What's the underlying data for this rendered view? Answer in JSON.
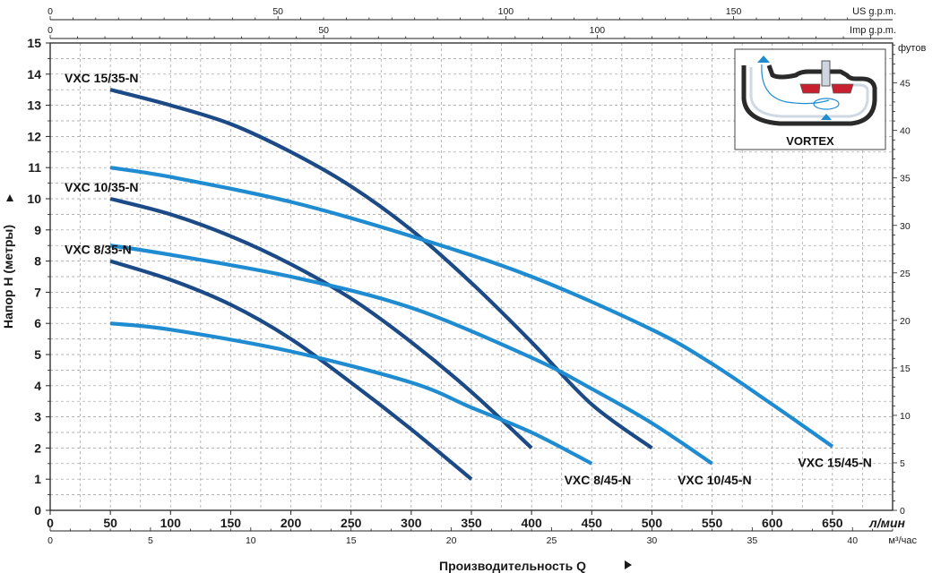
{
  "chart_data": {
    "type": "line",
    "xlabel": "Производительность  Q",
    "ylabel": "Напор  H (метры)",
    "x_unit": "л/мин",
    "y2_unit": "футов",
    "xlim": [
      0,
      700
    ],
    "ylim": [
      0,
      15
    ],
    "x_ticks": [
      0,
      50,
      100,
      150,
      200,
      250,
      300,
      350,
      400,
      450,
      500,
      550,
      600,
      650
    ],
    "y_ticks": [
      0,
      1,
      2,
      3,
      4,
      5,
      6,
      7,
      8,
      9,
      10,
      11,
      12,
      13,
      14,
      15
    ],
    "top_axes": [
      {
        "unit": "US g.p.m.",
        "max": 184.9,
        "ticks": [
          0,
          50,
          100,
          150
        ]
      },
      {
        "unit": "Imp g.p.m.",
        "max": 154.0,
        "ticks": [
          0,
          50,
          100
        ]
      }
    ],
    "bottom_axis2": {
      "unit": "м³/час",
      "max": 42,
      "ticks": [
        0,
        5,
        10,
        15,
        20,
        25,
        30,
        35,
        40
      ]
    },
    "right_axis": {
      "unit": "футов",
      "max": 49.21,
      "ticks": [
        0,
        5,
        10,
        15,
        20,
        25,
        30,
        35,
        40,
        45
      ]
    },
    "grid": true,
    "series": [
      {
        "name": "VXC 15/35-N",
        "color": "#1b4a86",
        "label_pos": "start",
        "x": [
          50,
          100,
          150,
          200,
          250,
          300,
          350,
          400,
          450,
          500
        ],
        "y": [
          13.5,
          13.0,
          12.4,
          11.5,
          10.4,
          9.0,
          7.3,
          5.4,
          3.4,
          2.0
        ]
      },
      {
        "name": "VXC 10/35-N",
        "color": "#1b4a86",
        "label_pos": "start",
        "x": [
          50,
          100,
          150,
          200,
          250,
          300,
          350,
          400
        ],
        "y": [
          10.0,
          9.5,
          8.8,
          7.9,
          6.8,
          5.4,
          3.8,
          2.0
        ]
      },
      {
        "name": "VXC  8/35-N",
        "color": "#1b4a86",
        "label_pos": "start",
        "x": [
          50,
          100,
          150,
          200,
          250,
          300,
          350
        ],
        "y": [
          8.0,
          7.4,
          6.6,
          5.5,
          4.1,
          2.6,
          1.0
        ]
      },
      {
        "name": "VXC 15/45-N",
        "color": "#1f8bd1",
        "label_pos": "end",
        "x": [
          50,
          100,
          200,
          300,
          400,
          500,
          550,
          600,
          650
        ],
        "y": [
          11.0,
          10.7,
          9.9,
          8.8,
          7.5,
          5.8,
          4.7,
          3.4,
          2.05
        ]
      },
      {
        "name": "VXC 10/45-N",
        "color": "#1f8bd1",
        "label_pos": "end",
        "x": [
          50,
          100,
          200,
          300,
          400,
          450,
          500,
          550
        ],
        "y": [
          8.5,
          8.2,
          7.5,
          6.5,
          4.9,
          3.9,
          2.8,
          1.5
        ]
      },
      {
        "name": "VXC  8/45-N",
        "color": "#1f8bd1",
        "label_pos": "end",
        "x": [
          50,
          100,
          200,
          300,
          350,
          400,
          450
        ],
        "y": [
          6.0,
          5.8,
          5.1,
          4.1,
          3.3,
          2.5,
          1.5
        ]
      }
    ]
  },
  "inset": {
    "title": "VORTEX"
  }
}
